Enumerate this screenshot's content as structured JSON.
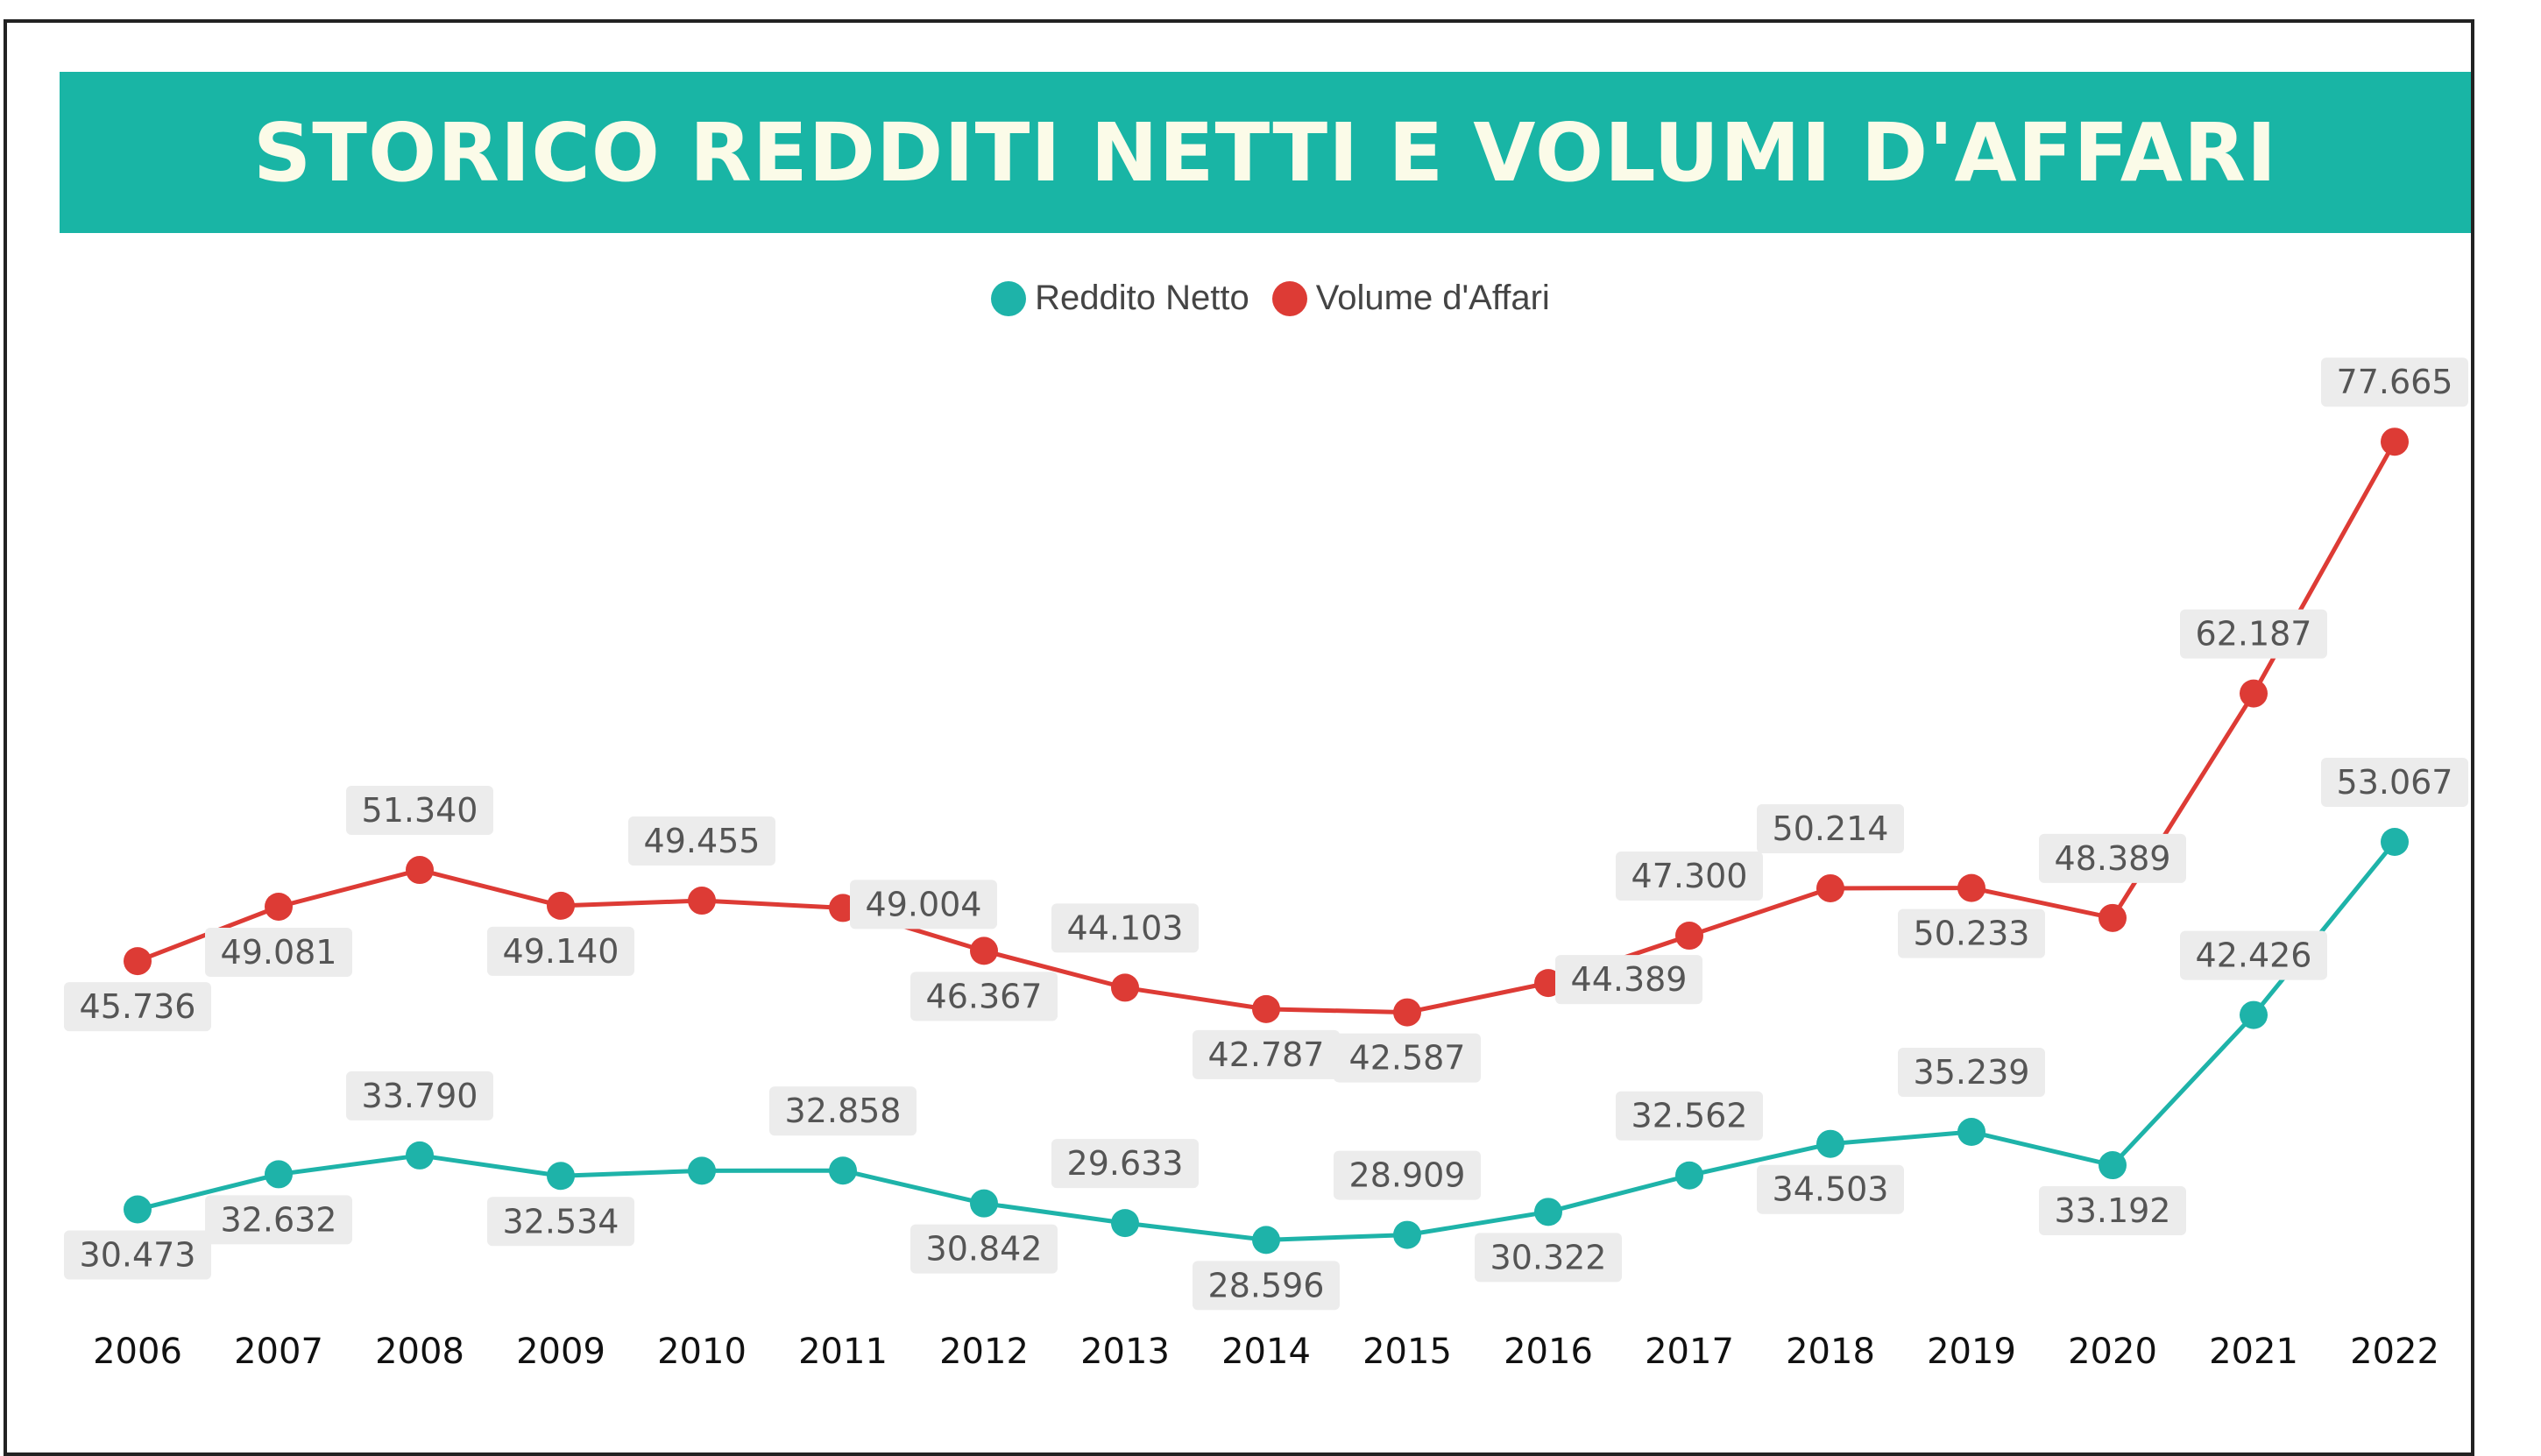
{
  "header": {
    "title": "STORICO REDDITI NETTI E VOLUMI D'AFFARI"
  },
  "colors": {
    "banner": "#19b5a5",
    "reddito": "#1eb3a9",
    "volume": "#dd3b35"
  },
  "legend": {
    "reddito_label": "Reddito Netto",
    "volume_label": "Volume d'Affari"
  },
  "chart_data": {
    "type": "line",
    "title": "STORICO REDDITI NETTI E VOLUMI D'AFFARI",
    "xlabel": "",
    "ylabel": "",
    "categories": [
      "2006",
      "2007",
      "2008",
      "2009",
      "2010",
      "2011",
      "2012",
      "2013",
      "2014",
      "2015",
      "2016",
      "2017",
      "2018",
      "2019",
      "2020",
      "2021",
      "2022"
    ],
    "ylim": [
      20000,
      85000
    ],
    "grid": false,
    "legend_position": "top-center",
    "series": [
      {
        "name": "Reddito Netto",
        "color": "#1eb3a9",
        "values": [
          30473,
          32632,
          33790,
          32534,
          32850,
          32858,
          30842,
          29633,
          28596,
          28909,
          30322,
          32562,
          34503,
          35239,
          33192,
          42426,
          53067
        ],
        "labels": [
          "30.473",
          "32.632",
          "33.790",
          "32.534",
          "",
          "32.858",
          "30.842",
          "29.633",
          "28.596",
          "28.909",
          "30.322",
          "32.562",
          "34.503",
          "35.239",
          "33.192",
          "42.426",
          "53.067"
        ],
        "label_pos": [
          "below",
          "below",
          "above",
          "below",
          "none",
          "above",
          "below",
          "above",
          "below",
          "above",
          "below",
          "above",
          "below",
          "above",
          "below",
          "above",
          "above"
        ]
      },
      {
        "name": "Volume d'Affari",
        "color": "#dd3b35",
        "values": [
          45736,
          49081,
          51340,
          49140,
          49455,
          49004,
          46367,
          44103,
          42787,
          42587,
          44389,
          47300,
          50214,
          50233,
          48389,
          62187,
          77665
        ],
        "labels": [
          "45.736",
          "49.081",
          "51.340",
          "49.140",
          "49.455",
          "49.004",
          "46.367",
          "44.103",
          "42.787",
          "42.587",
          "44.389",
          "47.300",
          "50.214",
          "50.233",
          "48.389",
          "62.187",
          "77.665"
        ],
        "label_pos": [
          "below",
          "below",
          "above",
          "below",
          "above",
          "right",
          "below",
          "above",
          "below",
          "below",
          "right",
          "above",
          "above",
          "below",
          "above",
          "above",
          "above"
        ]
      }
    ]
  }
}
